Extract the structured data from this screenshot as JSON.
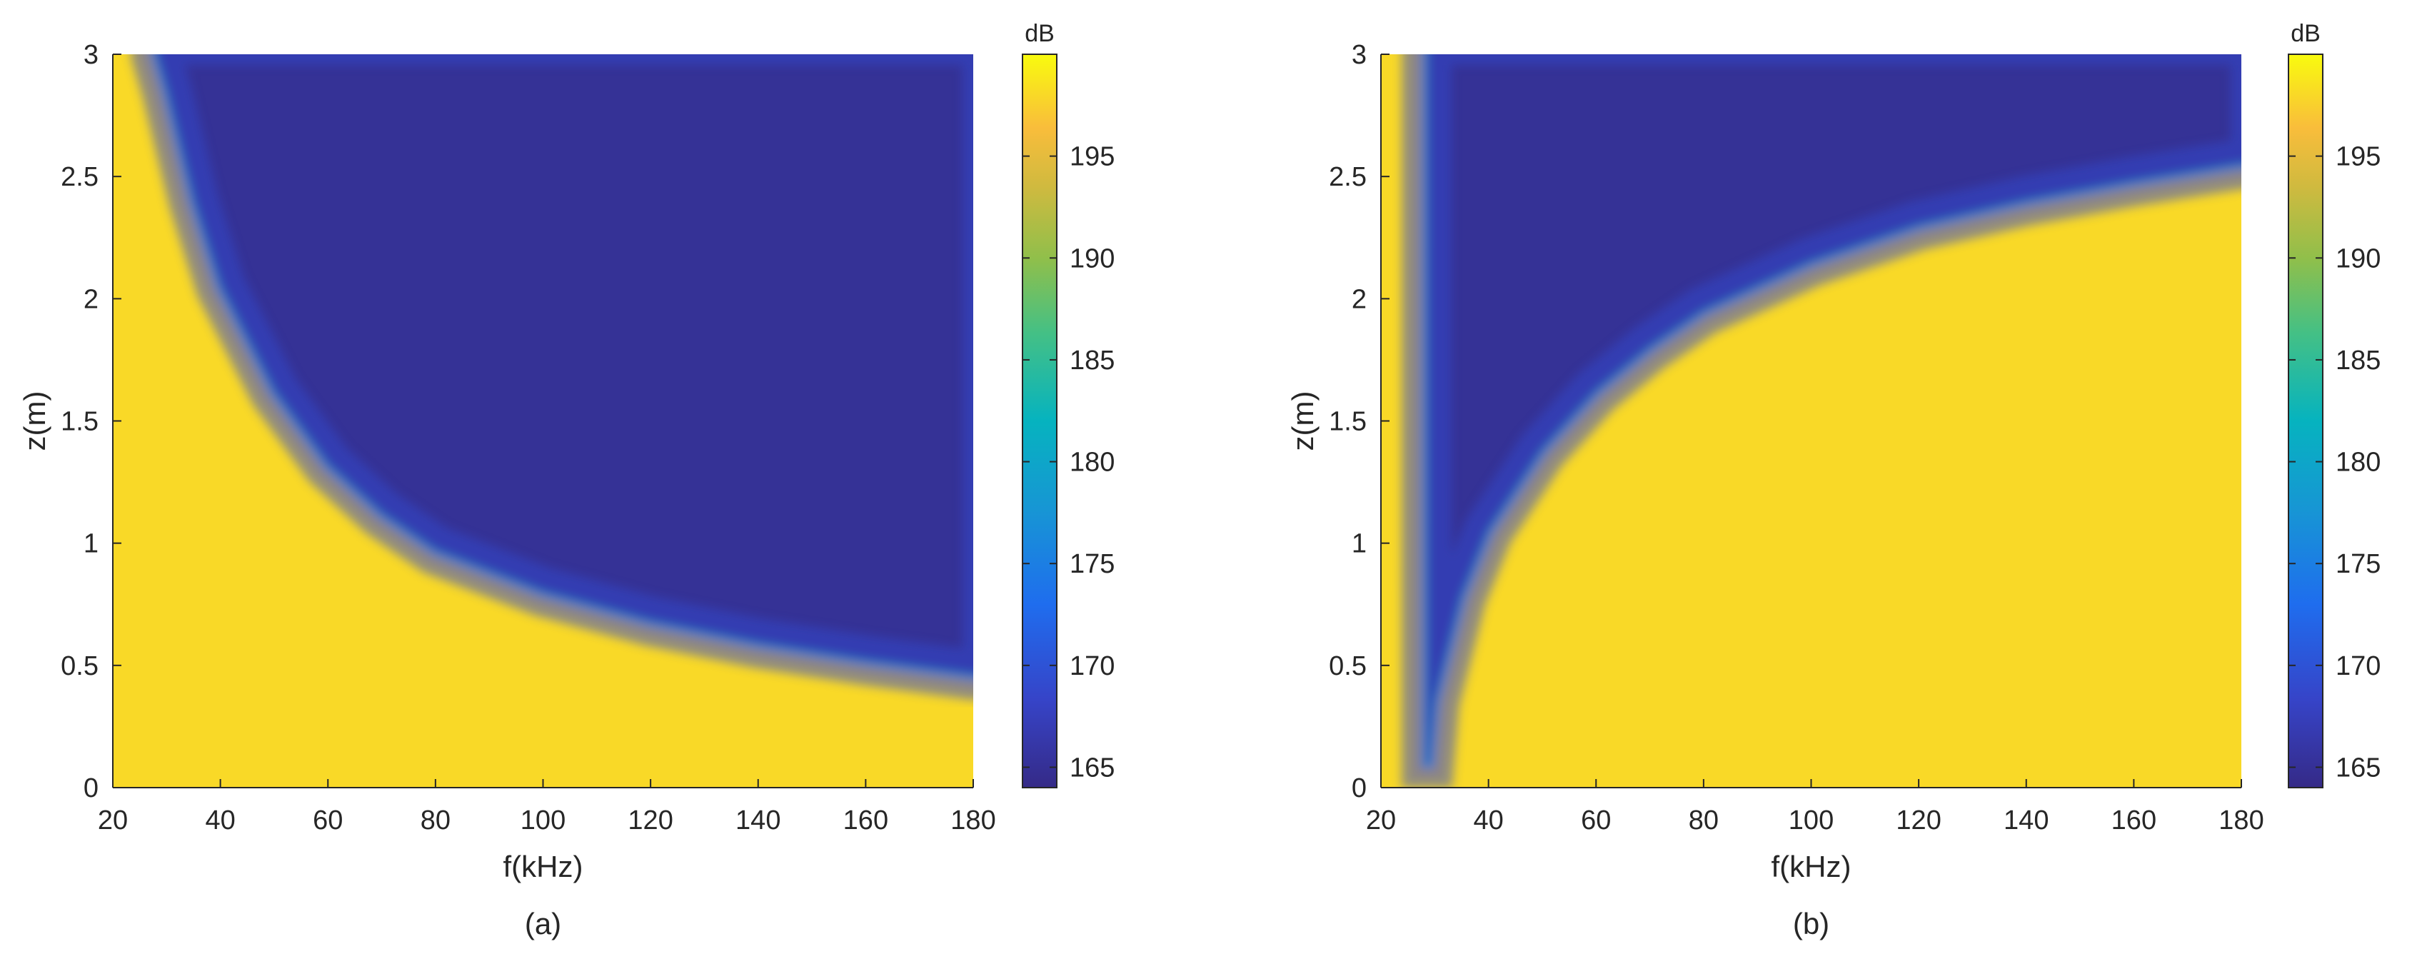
{
  "chart_data": [
    {
      "type": "heatmap",
      "caption": "(a)",
      "xlabel": "f(kHz)",
      "ylabel": "z(m)",
      "xlim": [
        20,
        180
      ],
      "ylim": [
        0,
        3
      ],
      "xticks": [
        20,
        40,
        60,
        80,
        100,
        120,
        140,
        160,
        180
      ],
      "yticks": [
        0,
        0.5,
        1,
        1.5,
        2,
        2.5,
        3
      ],
      "colorbar": {
        "title": "dB",
        "range": [
          164,
          200
        ],
        "ticks": [
          165,
          170,
          175,
          180,
          185,
          190,
          195
        ]
      },
      "boundary": {
        "description": "transition from ~198 dB (below) to ~165 dB (above)",
        "f": [
          28,
          30,
          35,
          40,
          50,
          60,
          70,
          80,
          100,
          120,
          140,
          160,
          180
        ],
        "z": [
          3.0,
          2.85,
          2.4,
          2.05,
          1.62,
          1.32,
          1.12,
          0.97,
          0.8,
          0.68,
          0.59,
          0.52,
          0.46
        ]
      },
      "values": {
        "low": 165,
        "high": 198
      }
    },
    {
      "type": "heatmap",
      "caption": "(b)",
      "xlabel": "f(kHz)",
      "ylabel": "z(m)",
      "xlim": [
        20,
        180
      ],
      "ylim": [
        0,
        3
      ],
      "xticks": [
        20,
        40,
        60,
        80,
        100,
        120,
        140,
        160,
        180
      ],
      "yticks": [
        0,
        0.5,
        1,
        1.5,
        2,
        2.5,
        3
      ],
      "colorbar": {
        "title": "dB",
        "range": [
          164,
          200
        ],
        "ticks": [
          165,
          170,
          175,
          180,
          185,
          190,
          195
        ]
      },
      "boundary": {
        "description": "high region left of ~29 kHz and below curve; low region in between",
        "left_edge_f": 28.5,
        "cusp": {
          "f": 29,
          "z": 0.1
        },
        "f": [
          29,
          30,
          35,
          40,
          50,
          60,
          70,
          80,
          100,
          120,
          140,
          160,
          180
        ],
        "z": [
          0.1,
          0.35,
          0.78,
          1.05,
          1.38,
          1.62,
          1.8,
          1.95,
          2.15,
          2.3,
          2.4,
          2.48,
          2.55
        ]
      },
      "values": {
        "low": 165,
        "high": 198
      }
    }
  ]
}
